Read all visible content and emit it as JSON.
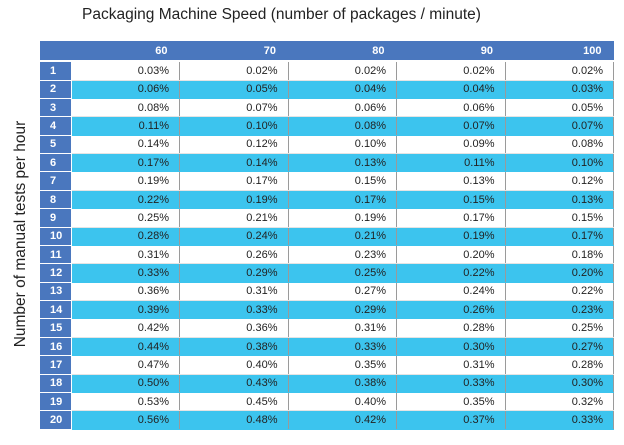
{
  "chart_data": {
    "type": "table",
    "title": "Packaging Machine Speed (number of packages / minute)",
    "ylabel": "Number of manual tests per hour",
    "columns": [
      "60",
      "70",
      "80",
      "90",
      "100"
    ],
    "rows": [
      "1",
      "2",
      "3",
      "4",
      "5",
      "6",
      "7",
      "8",
      "9",
      "10",
      "11",
      "12",
      "13",
      "14",
      "15",
      "16",
      "17",
      "18",
      "19",
      "20"
    ],
    "values": [
      [
        "0.03%",
        "0.02%",
        "0.02%",
        "0.02%",
        "0.02%"
      ],
      [
        "0.06%",
        "0.05%",
        "0.04%",
        "0.04%",
        "0.03%"
      ],
      [
        "0.08%",
        "0.07%",
        "0.06%",
        "0.06%",
        "0.05%"
      ],
      [
        "0.11%",
        "0.10%",
        "0.08%",
        "0.07%",
        "0.07%"
      ],
      [
        "0.14%",
        "0.12%",
        "0.10%",
        "0.09%",
        "0.08%"
      ],
      [
        "0.17%",
        "0.14%",
        "0.13%",
        "0.11%",
        "0.10%"
      ],
      [
        "0.19%",
        "0.17%",
        "0.15%",
        "0.13%",
        "0.12%"
      ],
      [
        "0.22%",
        "0.19%",
        "0.17%",
        "0.15%",
        "0.13%"
      ],
      [
        "0.25%",
        "0.21%",
        "0.19%",
        "0.17%",
        "0.15%"
      ],
      [
        "0.28%",
        "0.24%",
        "0.21%",
        "0.19%",
        "0.17%"
      ],
      [
        "0.31%",
        "0.26%",
        "0.23%",
        "0.20%",
        "0.18%"
      ],
      [
        "0.33%",
        "0.29%",
        "0.25%",
        "0.22%",
        "0.20%"
      ],
      [
        "0.36%",
        "0.31%",
        "0.27%",
        "0.24%",
        "0.22%"
      ],
      [
        "0.39%",
        "0.33%",
        "0.29%",
        "0.26%",
        "0.23%"
      ],
      [
        "0.42%",
        "0.36%",
        "0.31%",
        "0.28%",
        "0.25%"
      ],
      [
        "0.44%",
        "0.38%",
        "0.33%",
        "0.30%",
        "0.27%"
      ],
      [
        "0.47%",
        "0.40%",
        "0.35%",
        "0.31%",
        "0.28%"
      ],
      [
        "0.50%",
        "0.43%",
        "0.38%",
        "0.33%",
        "0.30%"
      ],
      [
        "0.53%",
        "0.45%",
        "0.40%",
        "0.35%",
        "0.32%"
      ],
      [
        "0.56%",
        "0.48%",
        "0.42%",
        "0.37%",
        "0.33%"
      ]
    ]
  },
  "colors": {
    "header_blue": "#4a77be",
    "stripe_cyan": "#3cc4ee",
    "white": "#ffffff"
  }
}
